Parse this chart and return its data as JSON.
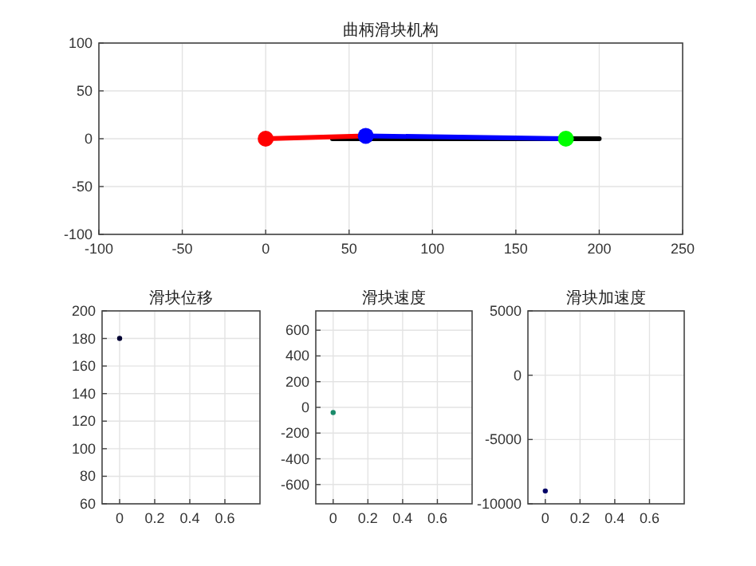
{
  "chart_data": [
    {
      "type": "line",
      "title": "曲柄滑块机构",
      "xlim": [
        -100,
        250
      ],
      "xticks": [
        -100,
        -50,
        0,
        50,
        100,
        150,
        200,
        250
      ],
      "ylim": [
        -100,
        100
      ],
      "yticks": [
        -100,
        -50,
        0,
        50,
        100
      ],
      "grid": true,
      "series": [
        {
          "color": "#000000",
          "x": [
            40,
            200
          ],
          "values": [
            0,
            0
          ],
          "marker": "none"
        },
        {
          "color": "#ff0000",
          "x": [
            0,
            60
          ],
          "values": [
            0,
            3
          ],
          "marker": "none"
        },
        {
          "color": "#0000ff",
          "x": [
            60,
            180
          ],
          "values": [
            3,
            0
          ],
          "marker": "none"
        },
        {
          "type": "scatter",
          "color": "#ff0000",
          "x": [
            0
          ],
          "values": [
            0
          ],
          "marker": "circle"
        },
        {
          "type": "scatter",
          "color": "#0000ff",
          "x": [
            60
          ],
          "values": [
            3
          ],
          "marker": "circle"
        },
        {
          "type": "scatter",
          "color": "#00ff00",
          "x": [
            180
          ],
          "values": [
            0
          ],
          "marker": "circle"
        }
      ]
    },
    {
      "type": "scatter",
      "title": "滑块位移",
      "xlim": [
        -0.1,
        0.8
      ],
      "xticks": [
        0,
        0.2,
        0.4,
        0.6
      ],
      "ylim": [
        60,
        200
      ],
      "yticks": [
        60,
        80,
        100,
        120,
        140,
        160,
        180,
        200
      ],
      "grid": true,
      "series": [
        {
          "color": "#000033",
          "x": [
            0
          ],
          "values": [
            180
          ]
        }
      ]
    },
    {
      "type": "scatter",
      "title": "滑块速度",
      "xlim": [
        -0.1,
        0.8
      ],
      "xticks": [
        0,
        0.2,
        0.4,
        0.6
      ],
      "ylim": [
        -750,
        750
      ],
      "yticks": [
        -600,
        -400,
        -200,
        0,
        200,
        400,
        600
      ],
      "grid": true,
      "series": [
        {
          "color": "#1a8a6a",
          "x": [
            0
          ],
          "values": [
            -40
          ]
        }
      ]
    },
    {
      "type": "scatter",
      "title": "滑块加速度",
      "xlim": [
        -0.1,
        0.8
      ],
      "xticks": [
        0,
        0.2,
        0.4,
        0.6
      ],
      "ylim": [
        -10000,
        5000
      ],
      "yticks": [
        -10000,
        -5000,
        0,
        5000
      ],
      "grid": true,
      "series": [
        {
          "color": "#000066",
          "x": [
            0
          ],
          "values": [
            -9000
          ]
        }
      ]
    }
  ]
}
